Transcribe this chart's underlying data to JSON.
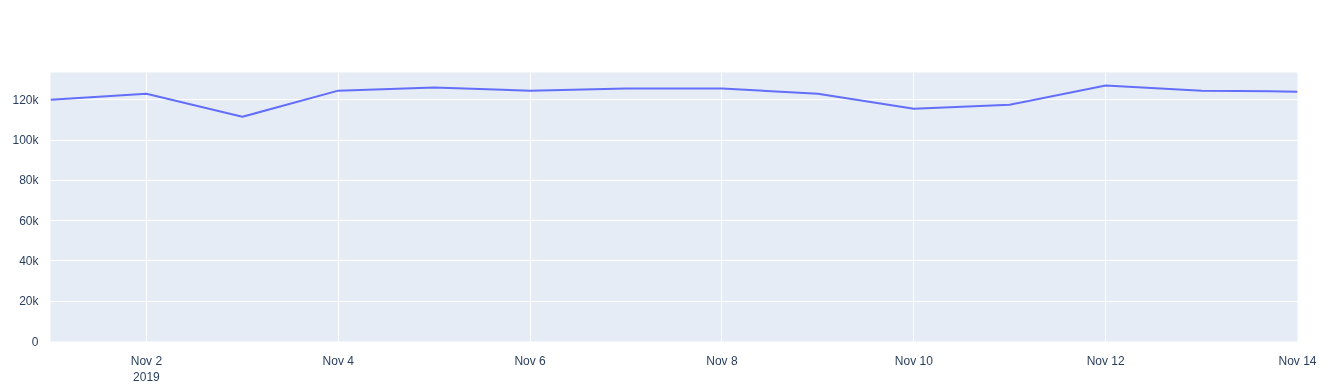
{
  "chart_data": {
    "type": "line",
    "x": [
      "2019-11-01",
      "2019-11-02",
      "2019-11-03",
      "2019-11-04",
      "2019-11-05",
      "2019-11-06",
      "2019-11-07",
      "2019-11-08",
      "2019-11-09",
      "2019-11-10",
      "2019-11-11",
      "2019-11-12",
      "2019-11-13",
      "2019-11-14"
    ],
    "series": [
      {
        "color": "#636efa",
        "values": [
          120000,
          123000,
          111500,
          124500,
          126000,
          124500,
          125500,
          125500,
          123000,
          115500,
          117500,
          127000,
          124500,
          124000
        ]
      }
    ],
    "xlim": [
      "2019-11-01",
      "2019-11-14"
    ],
    "xticks": [
      {
        "value": "2019-11-02",
        "label": "Nov 2\n2019"
      },
      {
        "value": "2019-11-04",
        "label": "Nov 4"
      },
      {
        "value": "2019-11-06",
        "label": "Nov 6"
      },
      {
        "value": "2019-11-08",
        "label": "Nov 8"
      },
      {
        "value": "2019-11-10",
        "label": "Nov 10"
      },
      {
        "value": "2019-11-12",
        "label": "Nov 12"
      },
      {
        "value": "2019-11-14",
        "label": "Nov 14"
      }
    ],
    "ylim": [
      0,
      133500
    ],
    "yticks": [
      0,
      {
        "value": 20000,
        "label": "20k"
      },
      {
        "value": 40000,
        "label": "40k"
      },
      {
        "value": 60000,
        "label": "60k"
      },
      {
        "value": 80000,
        "label": "80k"
      },
      {
        "value": 100000,
        "label": "100k"
      },
      {
        "value": 120000,
        "label": "120k"
      }
    ],
    "grid": true,
    "line_style": "solid",
    "marker": "none"
  }
}
